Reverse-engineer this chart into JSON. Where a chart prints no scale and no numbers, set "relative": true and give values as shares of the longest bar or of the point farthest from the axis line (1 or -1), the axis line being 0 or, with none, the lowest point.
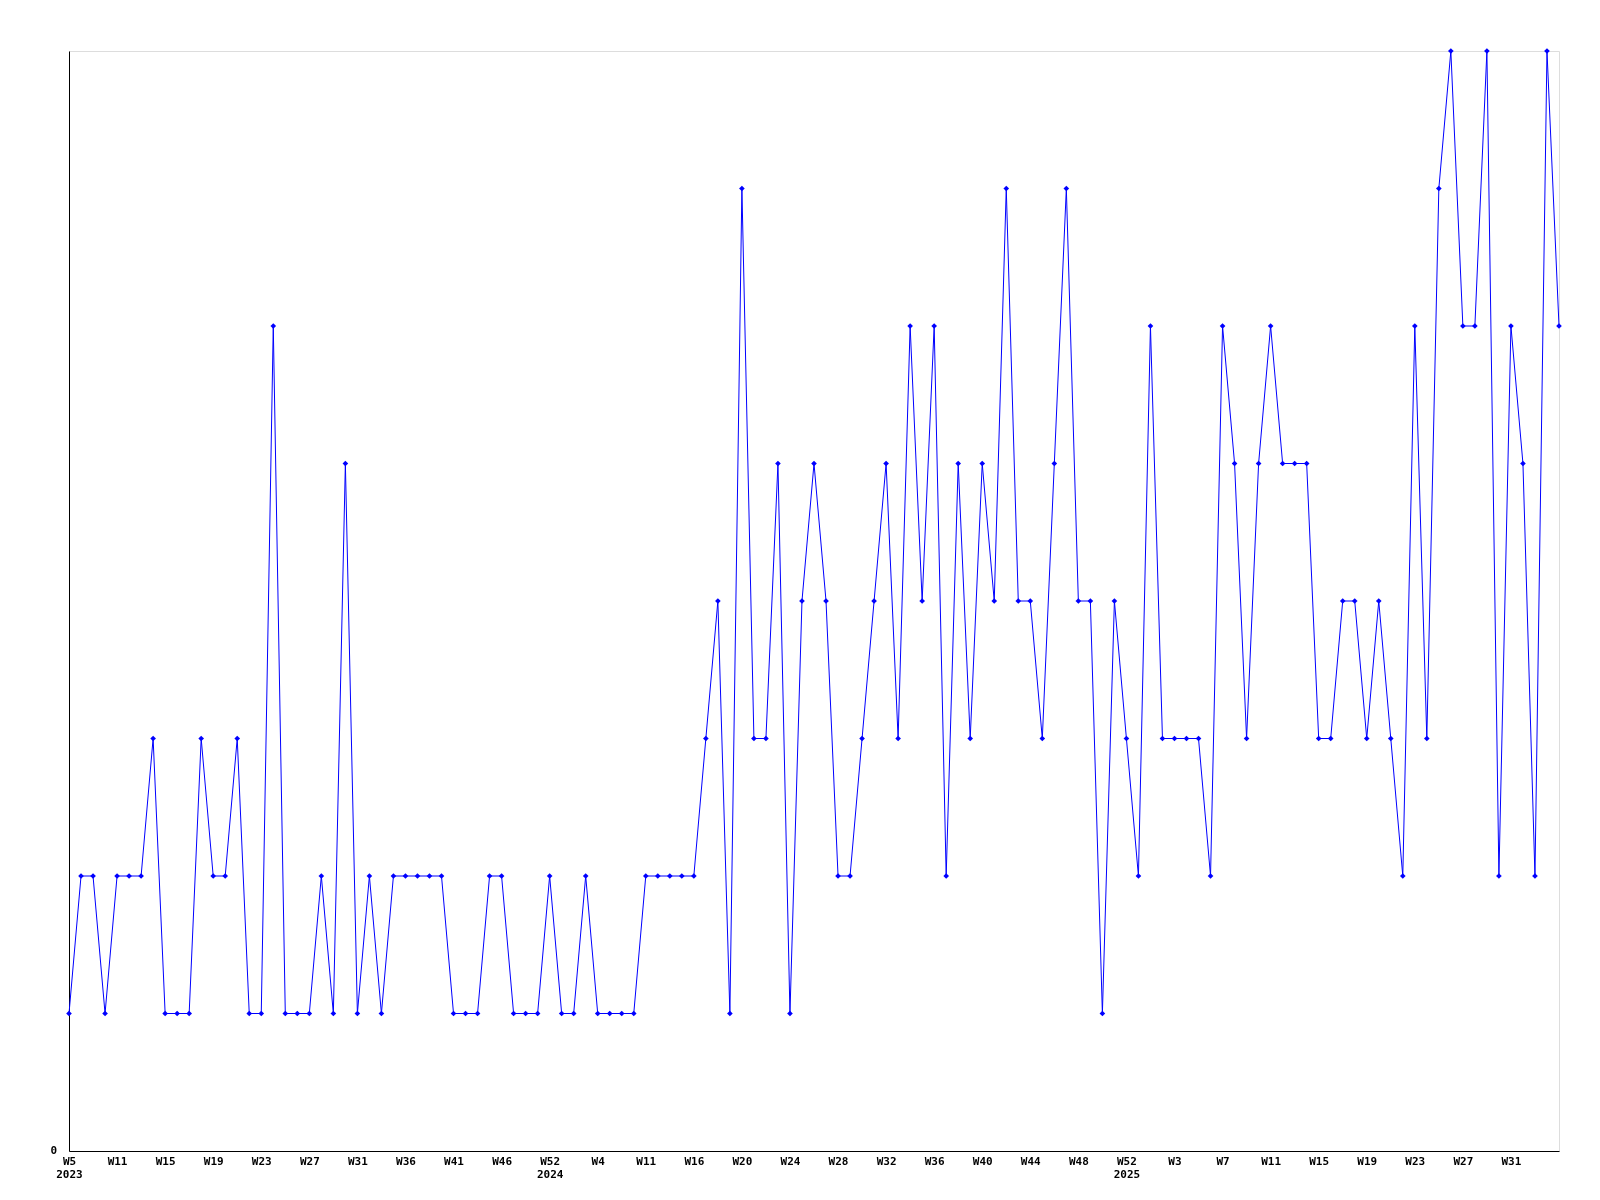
{
  "chart_data": {
    "type": "line",
    "relative": true,
    "marker": "diamond",
    "line_style": "solid",
    "grid": false,
    "categories": [
      "W5\n2023",
      null,
      null,
      null,
      "W11",
      null,
      null,
      null,
      "W15",
      null,
      null,
      null,
      "W19",
      null,
      null,
      null,
      "W23",
      null,
      null,
      null,
      "W27",
      null,
      null,
      null,
      "W31",
      null,
      null,
      null,
      "W36",
      null,
      null,
      null,
      "W41",
      null,
      null,
      null,
      "W46",
      null,
      null,
      null,
      "W52\n2024",
      null,
      null,
      null,
      "W4",
      null,
      null,
      null,
      "W11",
      null,
      null,
      null,
      "W16",
      null,
      null,
      null,
      "W20",
      null,
      null,
      null,
      "W24",
      null,
      null,
      null,
      "W28",
      null,
      null,
      null,
      "W32",
      null,
      null,
      null,
      "W36",
      null,
      null,
      null,
      "W40",
      null,
      null,
      null,
      "W44",
      null,
      null,
      null,
      "W48",
      null,
      null,
      null,
      "W52\n2025",
      null,
      null,
      null,
      "W3",
      null,
      null,
      null,
      "W7",
      null,
      null,
      null,
      "W11",
      null,
      null,
      null,
      "W15",
      null,
      null,
      null,
      "W19",
      null,
      null,
      null,
      "W23",
      null,
      null,
      null,
      "W27",
      null,
      null,
      null,
      "W31",
      null,
      null,
      null,
      null
    ],
    "series": [
      {
        "color": "#0000ff",
        "values": [
          0.125,
          0.25,
          0.25,
          0.125,
          0.25,
          0.25,
          0.25,
          0.375,
          0.125,
          0.125,
          0.125,
          0.375,
          0.25,
          0.25,
          0.375,
          0.125,
          0.125,
          0.75,
          0.125,
          0.125,
          0.125,
          0.25,
          0.125,
          0.625,
          0.125,
          0.25,
          0.125,
          0.25,
          0.25,
          0.25,
          0.25,
          0.25,
          0.125,
          0.125,
          0.125,
          0.25,
          0.25,
          0.125,
          0.125,
          0.125,
          0.25,
          0.125,
          0.125,
          0.25,
          0.125,
          0.125,
          0.125,
          0.125,
          0.25,
          0.25,
          0.25,
          0.25,
          0.25,
          0.375,
          0.5,
          0.125,
          0.875,
          0.375,
          0.375,
          0.625,
          0.125,
          0.5,
          0.625,
          0.5,
          0.25,
          0.25,
          0.375,
          0.5,
          0.625,
          0.375,
          0.75,
          0.5,
          0.75,
          0.25,
          0.625,
          0.375,
          0.625,
          0.5,
          0.875,
          0.5,
          0.5,
          0.375,
          0.625,
          0.875,
          0.5,
          0.5,
          0.125,
          0.5,
          0.375,
          0.25,
          0.75,
          0.375,
          0.375,
          0.375,
          0.375,
          0.25,
          0.75,
          0.625,
          0.375,
          0.625,
          0.75,
          0.625,
          0.625,
          0.625,
          0.375,
          0.375,
          0.5,
          0.5,
          0.375,
          0.5,
          0.375,
          0.25,
          0.75,
          0.375,
          0.875,
          1,
          0.75,
          0.75,
          1,
          0.25,
          0.75,
          0.625,
          0.25,
          1,
          0.75
        ]
      }
    ],
    "annotations": [
      "0"
    ]
  }
}
